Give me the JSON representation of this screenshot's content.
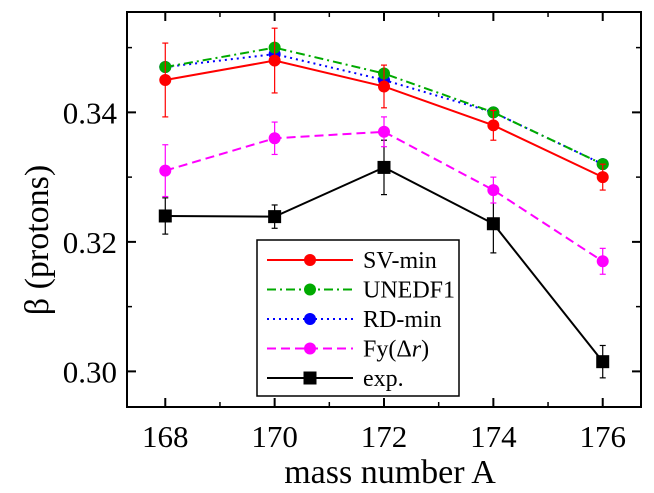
{
  "chart_data": {
    "type": "line",
    "xlabel": "mass number A",
    "ylabel": "β (protons)",
    "xlim": [
      167.3,
      176.7
    ],
    "ylim": [
      0.2945,
      0.3555
    ],
    "xticks": [
      168,
      170,
      172,
      174,
      176
    ],
    "yticks": [
      0.3,
      0.32,
      0.34
    ],
    "xtick_labels": [
      "168",
      "170",
      "172",
      "174",
      "176"
    ],
    "ytick_labels": [
      "0.30",
      "0.32",
      "0.34"
    ],
    "grid": false,
    "legend_position": "bottom-center",
    "x": [
      168,
      170,
      172,
      174,
      176
    ],
    "series": [
      {
        "name": "SV-min",
        "color": "#ff0000",
        "line_style": "solid",
        "marker": "circle",
        "values": [
          0.345,
          0.348,
          0.344,
          0.338,
          0.33
        ],
        "errors": [
          0.0057,
          0.005,
          0.0033,
          0.0023,
          0.002
        ]
      },
      {
        "name": "UNEDF1",
        "color": "#00aa00",
        "line_style": "dash-dot",
        "marker": "circle",
        "values": [
          0.347,
          0.35,
          0.346,
          0.34,
          0.332
        ],
        "errors": null
      },
      {
        "name": "RD-min",
        "color": "#0000ff",
        "line_style": "dotted",
        "marker": "circle",
        "values": [
          0.347,
          0.349,
          0.345,
          0.34,
          0.332
        ],
        "errors": null
      },
      {
        "name": "Fy(Δr)",
        "name_parts": [
          "Fy(Δ",
          "r",
          ")"
        ],
        "color": "#ff00ff",
        "line_style": "dashed",
        "marker": "circle",
        "values": [
          0.331,
          0.336,
          0.337,
          0.328,
          0.317
        ],
        "errors": [
          0.004,
          0.0025,
          0.0023,
          0.002,
          0.002
        ]
      },
      {
        "name": "exp.",
        "color": "#000000",
        "line_style": "solid",
        "marker": "square",
        "values": [
          0.324,
          0.3239,
          0.3315,
          0.3228,
          0.3015
        ],
        "errors": [
          0.0028,
          0.0018,
          0.0042,
          0.0045,
          0.0025
        ]
      }
    ]
  }
}
